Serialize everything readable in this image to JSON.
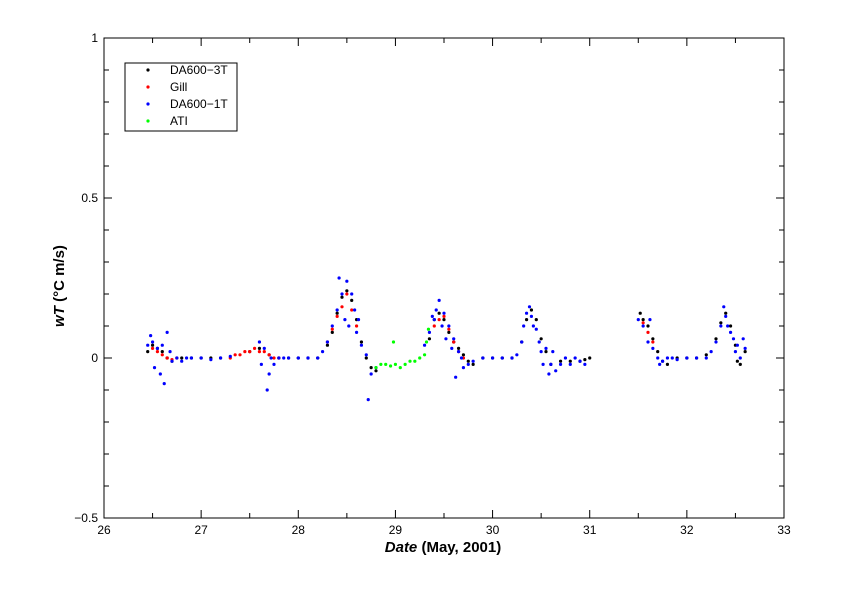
{
  "chart_data": {
    "type": "scatter",
    "title": "",
    "xlabel_italic": "Date",
    "xlabel_rest": " (May, 2001)",
    "ylabel_italic": "wT",
    "ylabel_rest": " (°C m/s)",
    "xlim": [
      26,
      33
    ],
    "ylim": [
      -0.5,
      1
    ],
    "x_ticks": [
      26,
      27,
      28,
      29,
      30,
      31,
      32,
      33
    ],
    "x_tick_labels": [
      "26",
      "27",
      "28",
      "29",
      "30",
      "31",
      "32",
      "33"
    ],
    "y_ticks": [
      -0.5,
      0,
      0.5,
      1
    ],
    "y_tick_labels": [
      "−0.5",
      "0",
      "0.5",
      "1"
    ],
    "legend_position": "top-left",
    "legend": [
      {
        "name": "DA600−3T",
        "color": "#000000"
      },
      {
        "name": "Gill",
        "color": "#ff0000"
      },
      {
        "name": "DA600−1T",
        "color": "#0000ff"
      },
      {
        "name": "ATI",
        "color": "#00ff00"
      }
    ],
    "series": [
      {
        "name": "DA600−3T",
        "color": "#000000",
        "points": [
          [
            26.45,
            0.02
          ],
          [
            26.5,
            0.04
          ],
          [
            26.55,
            0.03
          ],
          [
            26.6,
            0.02
          ],
          [
            26.65,
            0.0
          ],
          [
            26.7,
            -0.01
          ],
          [
            26.8,
            0.0
          ],
          [
            26.9,
            0.0
          ],
          [
            27.0,
            0.0
          ],
          [
            27.1,
            0.0
          ],
          [
            27.2,
            0.0
          ],
          [
            27.5,
            0.02
          ],
          [
            27.6,
            0.03
          ],
          [
            27.7,
            0.01
          ],
          [
            27.8,
            0.0
          ],
          [
            27.9,
            0.0
          ],
          [
            28.0,
            0.0
          ],
          [
            28.1,
            0.0
          ],
          [
            28.2,
            0.0
          ],
          [
            28.3,
            0.04
          ],
          [
            28.35,
            0.08
          ],
          [
            28.4,
            0.14
          ],
          [
            28.45,
            0.19
          ],
          [
            28.5,
            0.21
          ],
          [
            28.55,
            0.18
          ],
          [
            28.6,
            0.12
          ],
          [
            28.65,
            0.05
          ],
          [
            28.7,
            0.0
          ],
          [
            28.75,
            -0.03
          ],
          [
            28.8,
            -0.04
          ],
          [
            29.35,
            0.06
          ],
          [
            29.4,
            0.12
          ],
          [
            29.45,
            0.14
          ],
          [
            29.5,
            0.12
          ],
          [
            29.55,
            0.08
          ],
          [
            29.6,
            0.05
          ],
          [
            29.65,
            0.03
          ],
          [
            29.7,
            0.01
          ],
          [
            29.75,
            -0.01
          ],
          [
            29.8,
            -0.02
          ],
          [
            29.9,
            0.0
          ],
          [
            30.0,
            0.0
          ],
          [
            30.1,
            0.0
          ],
          [
            30.2,
            0.0
          ],
          [
            30.3,
            0.05
          ],
          [
            30.35,
            0.12
          ],
          [
            30.4,
            0.15
          ],
          [
            30.45,
            0.12
          ],
          [
            30.5,
            0.06
          ],
          [
            30.55,
            0.02
          ],
          [
            30.6,
            -0.02
          ],
          [
            30.7,
            -0.01
          ],
          [
            30.8,
            -0.01
          ],
          [
            30.9,
            -0.01
          ],
          [
            30.95,
            -0.005
          ],
          [
            31.0,
            0.0
          ],
          [
            31.52,
            0.14
          ],
          [
            31.55,
            0.12
          ],
          [
            31.6,
            0.1
          ],
          [
            31.65,
            0.06
          ],
          [
            31.7,
            0.02
          ],
          [
            31.75,
            -0.01
          ],
          [
            31.8,
            -0.02
          ],
          [
            31.9,
            0.0
          ],
          [
            32.0,
            0.0
          ],
          [
            32.1,
            0.0
          ],
          [
            32.2,
            0.01
          ],
          [
            32.3,
            0.06
          ],
          [
            32.35,
            0.11
          ],
          [
            32.4,
            0.14
          ],
          [
            32.45,
            0.1
          ],
          [
            32.5,
            0.04
          ],
          [
            32.52,
            -0.01
          ],
          [
            32.55,
            -0.02
          ],
          [
            32.6,
            0.02
          ]
        ]
      },
      {
        "name": "Gill",
        "color": "#ff0000",
        "points": [
          [
            26.5,
            0.03
          ],
          [
            26.55,
            0.02
          ],
          [
            26.6,
            0.01
          ],
          [
            26.65,
            0.0
          ],
          [
            26.7,
            -0.005
          ],
          [
            26.75,
            0.0
          ],
          [
            27.3,
            0.0
          ],
          [
            27.35,
            0.01
          ],
          [
            27.4,
            0.01
          ],
          [
            27.45,
            0.02
          ],
          [
            27.5,
            0.02
          ],
          [
            27.55,
            0.03
          ],
          [
            27.6,
            0.02
          ],
          [
            27.65,
            0.02
          ],
          [
            27.7,
            0.01
          ],
          [
            27.75,
            0.0
          ],
          [
            27.8,
            0.0
          ],
          [
            28.3,
            0.05
          ],
          [
            28.35,
            0.09
          ],
          [
            28.4,
            0.13
          ],
          [
            28.45,
            0.16
          ],
          [
            28.5,
            0.2
          ],
          [
            28.55,
            0.15
          ],
          [
            28.6,
            0.1
          ],
          [
            29.4,
            0.1
          ],
          [
            29.45,
            0.12
          ],
          [
            29.5,
            0.13
          ],
          [
            29.55,
            0.09
          ],
          [
            29.6,
            0.05
          ],
          [
            29.65,
            0.02
          ],
          [
            29.7,
            0.0
          ],
          [
            31.55,
            0.11
          ],
          [
            31.6,
            0.08
          ],
          [
            31.65,
            0.05
          ]
        ]
      },
      {
        "name": "DA600−1T",
        "color": "#0000ff",
        "points": [
          [
            26.45,
            0.04
          ],
          [
            26.48,
            0.07
          ],
          [
            26.5,
            0.05
          ],
          [
            26.52,
            -0.03
          ],
          [
            26.55,
            0.03
          ],
          [
            26.58,
            -0.05
          ],
          [
            26.6,
            0.04
          ],
          [
            26.62,
            -0.08
          ],
          [
            26.65,
            0.08
          ],
          [
            26.68,
            0.02
          ],
          [
            26.7,
            -0.01
          ],
          [
            26.75,
            0.0
          ],
          [
            26.8,
            -0.01
          ],
          [
            26.85,
            0.0
          ],
          [
            26.9,
            0.0
          ],
          [
            27.0,
            0.0
          ],
          [
            27.1,
            -0.005
          ],
          [
            27.2,
            0.0
          ],
          [
            27.3,
            0.005
          ],
          [
            27.6,
            0.05
          ],
          [
            27.62,
            -0.02
          ],
          [
            27.65,
            0.03
          ],
          [
            27.68,
            -0.1
          ],
          [
            27.7,
            -0.05
          ],
          [
            27.72,
            0.0
          ],
          [
            27.75,
            -0.02
          ],
          [
            27.8,
            0.0
          ],
          [
            27.85,
            0.0
          ],
          [
            27.9,
            0.0
          ],
          [
            28.0,
            0.0
          ],
          [
            28.1,
            0.0
          ],
          [
            28.2,
            0.0
          ],
          [
            28.25,
            0.02
          ],
          [
            28.3,
            0.05
          ],
          [
            28.35,
            0.1
          ],
          [
            28.4,
            0.15
          ],
          [
            28.42,
            0.25
          ],
          [
            28.45,
            0.2
          ],
          [
            28.48,
            0.12
          ],
          [
            28.5,
            0.24
          ],
          [
            28.52,
            0.1
          ],
          [
            28.55,
            0.2
          ],
          [
            28.58,
            0.15
          ],
          [
            28.6,
            0.08
          ],
          [
            28.62,
            0.12
          ],
          [
            28.65,
            0.04
          ],
          [
            28.7,
            0.01
          ],
          [
            28.72,
            -0.13
          ],
          [
            28.75,
            -0.05
          ],
          [
            28.8,
            -0.03
          ],
          [
            29.3,
            0.04
          ],
          [
            29.35,
            0.08
          ],
          [
            29.38,
            0.13
          ],
          [
            29.4,
            0.12
          ],
          [
            29.42,
            0.15
          ],
          [
            29.45,
            0.18
          ],
          [
            29.48,
            0.1
          ],
          [
            29.5,
            0.14
          ],
          [
            29.52,
            0.06
          ],
          [
            29.55,
            0.1
          ],
          [
            29.58,
            0.03
          ],
          [
            29.6,
            0.06
          ],
          [
            29.62,
            -0.06
          ],
          [
            29.65,
            0.02
          ],
          [
            29.68,
            0.0
          ],
          [
            29.7,
            -0.03
          ],
          [
            29.75,
            -0.02
          ],
          [
            29.8,
            -0.01
          ],
          [
            29.9,
            0.0
          ],
          [
            30.0,
            0.0
          ],
          [
            30.1,
            0.0
          ],
          [
            30.2,
            0.0
          ],
          [
            30.25,
            0.01
          ],
          [
            30.3,
            0.05
          ],
          [
            30.32,
            0.1
          ],
          [
            30.35,
            0.14
          ],
          [
            30.38,
            0.16
          ],
          [
            30.4,
            0.13
          ],
          [
            30.42,
            0.1
          ],
          [
            30.45,
            0.09
          ],
          [
            30.48,
            0.05
          ],
          [
            30.5,
            0.02
          ],
          [
            30.52,
            -0.02
          ],
          [
            30.55,
            0.03
          ],
          [
            30.58,
            -0.05
          ],
          [
            30.6,
            -0.02
          ],
          [
            30.62,
            0.02
          ],
          [
            30.65,
            -0.04
          ],
          [
            30.7,
            -0.02
          ],
          [
            30.75,
            0.0
          ],
          [
            30.8,
            -0.02
          ],
          [
            30.85,
            0.0
          ],
          [
            30.9,
            -0.01
          ],
          [
            30.95,
            -0.02
          ],
          [
            31.5,
            0.12
          ],
          [
            31.55,
            0.1
          ],
          [
            31.6,
            0.05
          ],
          [
            31.62,
            0.12
          ],
          [
            31.65,
            0.03
          ],
          [
            31.7,
            0.0
          ],
          [
            31.72,
            -0.02
          ],
          [
            31.75,
            -0.01
          ],
          [
            31.8,
            0.0
          ],
          [
            31.85,
            0.0
          ],
          [
            31.9,
            -0.005
          ],
          [
            32.0,
            0.0
          ],
          [
            32.1,
            0.0
          ],
          [
            32.2,
            0.0
          ],
          [
            32.25,
            0.02
          ],
          [
            32.3,
            0.05
          ],
          [
            32.35,
            0.1
          ],
          [
            32.38,
            0.16
          ],
          [
            32.4,
            0.13
          ],
          [
            32.42,
            0.1
          ],
          [
            32.45,
            0.08
          ],
          [
            32.48,
            0.06
          ],
          [
            32.5,
            0.02
          ],
          [
            32.52,
            0.04
          ],
          [
            32.55,
            0.0
          ],
          [
            32.58,
            0.06
          ],
          [
            32.6,
            0.03
          ]
        ]
      },
      {
        "name": "ATI",
        "color": "#00ff00",
        "points": [
          [
            28.8,
            -0.03
          ],
          [
            28.85,
            -0.02
          ],
          [
            28.9,
            -0.02
          ],
          [
            28.95,
            -0.025
          ],
          [
            28.98,
            0.05
          ],
          [
            29.0,
            -0.02
          ],
          [
            29.05,
            -0.03
          ],
          [
            29.1,
            -0.02
          ],
          [
            29.15,
            -0.01
          ],
          [
            29.2,
            -0.01
          ],
          [
            29.25,
            0.0
          ],
          [
            29.3,
            0.01
          ],
          [
            29.32,
            0.05
          ],
          [
            29.34,
            0.09
          ]
        ]
      }
    ]
  }
}
